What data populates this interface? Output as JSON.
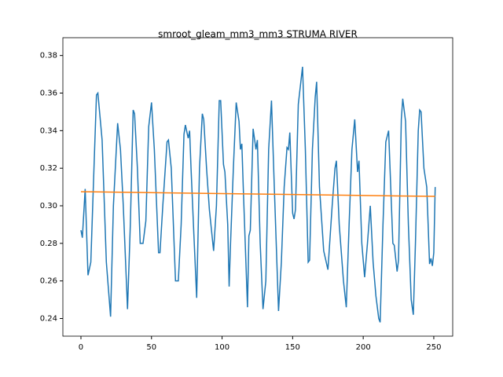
{
  "chart_data": {
    "type": "line",
    "title": "smroot_gleam_mm3_mm3 STRUMA RIVER",
    "xlim": [
      -12.8,
      263.4
    ],
    "ylim": [
      0.2306,
      0.3853
    ],
    "xticks": [
      0,
      50,
      100,
      150,
      200,
      250
    ],
    "yticks": [
      0.24,
      0.26,
      0.28,
      {
        "value": 0.3,
        "label": "0.30"
      },
      0.32,
      0.34,
      0.36,
      0.38
    ],
    "series": [
      {
        "color": "#1f77b4",
        "x": [
          0,
          1,
          3,
          5,
          7,
          9,
          11,
          12,
          15,
          18,
          21,
          23,
          26,
          28,
          30,
          33,
          35,
          37,
          38,
          40,
          42,
          44,
          46,
          48,
          50,
          52,
          55,
          56,
          58,
          61,
          62,
          64,
          67,
          69,
          71,
          73,
          74,
          76,
          77,
          78,
          80,
          82,
          84,
          86,
          87,
          89,
          91,
          94,
          96,
          98,
          99,
          101,
          102,
          104,
          105,
          106,
          108,
          110,
          112,
          113,
          114,
          115,
          118,
          119,
          120,
          122,
          124,
          125,
          127,
          129,
          131,
          133,
          135,
          137,
          140,
          142,
          144,
          146,
          147,
          148,
          150,
          151,
          152,
          154,
          157,
          159,
          161,
          162,
          164,
          166,
          167,
          169,
          172,
          175,
          178,
          180,
          181,
          183,
          186,
          188,
          190,
          192,
          194,
          196,
          197,
          199,
          201,
          203,
          205,
          207,
          209,
          211,
          212,
          214,
          216,
          218,
          220,
          221,
          222,
          224,
          225,
          227,
          228,
          230,
          232,
          234,
          235.5,
          237,
          239,
          240,
          241,
          243,
          245,
          246,
          247,
          248,
          249,
          250,
          251
        ],
        "values": [
          0.287,
          0.283,
          0.309,
          0.263,
          0.27,
          0.315,
          0.359,
          0.36,
          0.335,
          0.27,
          0.241,
          0.3,
          0.344,
          0.33,
          0.3,
          0.245,
          0.29,
          0.351,
          0.349,
          0.32,
          0.28,
          0.28,
          0.292,
          0.342,
          0.355,
          0.33,
          0.275,
          0.275,
          0.3,
          0.334,
          0.335,
          0.32,
          0.26,
          0.26,
          0.29,
          0.338,
          0.343,
          0.336,
          0.34,
          0.32,
          0.285,
          0.251,
          0.32,
          0.349,
          0.346,
          0.32,
          0.298,
          0.276,
          0.3,
          0.356,
          0.356,
          0.322,
          0.318,
          0.29,
          0.257,
          0.28,
          0.32,
          0.355,
          0.345,
          0.33,
          0.333,
          0.31,
          0.246,
          0.284,
          0.287,
          0.341,
          0.33,
          0.335,
          0.28,
          0.245,
          0.26,
          0.33,
          0.356,
          0.31,
          0.244,
          0.27,
          0.31,
          0.331,
          0.33,
          0.339,
          0.296,
          0.293,
          0.298,
          0.354,
          0.374,
          0.33,
          0.27,
          0.271,
          0.33,
          0.358,
          0.366,
          0.31,
          0.276,
          0.266,
          0.3,
          0.32,
          0.324,
          0.29,
          0.26,
          0.246,
          0.29,
          0.33,
          0.346,
          0.318,
          0.324,
          0.28,
          0.262,
          0.28,
          0.3,
          0.27,
          0.252,
          0.24,
          0.238,
          0.29,
          0.334,
          0.34,
          0.3,
          0.28,
          0.279,
          0.265,
          0.271,
          0.346,
          0.357,
          0.345,
          0.29,
          0.25,
          0.242,
          0.28,
          0.34,
          0.351,
          0.35,
          0.32,
          0.31,
          0.29,
          0.269,
          0.272,
          0.268,
          0.275,
          0.31
        ]
      },
      {
        "color": "#ff7f0e",
        "x": [
          0,
          251
        ],
        "values": [
          0.3075,
          0.305
        ]
      }
    ]
  }
}
